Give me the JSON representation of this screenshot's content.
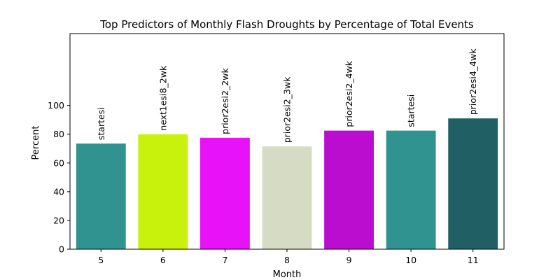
{
  "chart_data": {
    "type": "bar",
    "title": "Top Predictors of Monthly Flash Droughts by Percentage of Total Events",
    "xlabel": "Month",
    "ylabel": "Percent",
    "categories": [
      "5",
      "6",
      "7",
      "8",
      "9",
      "10",
      "11"
    ],
    "values": [
      73.5,
      80,
      77.5,
      71.5,
      82.5,
      82.5,
      91
    ],
    "bar_labels": [
      "startesi",
      "next1esi8_2wk",
      "prior2esi2_2wk",
      "prior2esi2_3wk",
      "prior2esi2_4wk",
      "startesi",
      "prior2esi4_4wk"
    ],
    "colors": [
      "#31938f",
      "#c8f20c",
      "#e812f8",
      "#d6dcc4",
      "#bb0dd0",
      "#31938f",
      "#205f63"
    ],
    "ylim": [
      0,
      150
    ],
    "yticks": [
      0,
      20,
      40,
      60,
      80,
      100
    ],
    "grid": false,
    "legend": "none"
  }
}
